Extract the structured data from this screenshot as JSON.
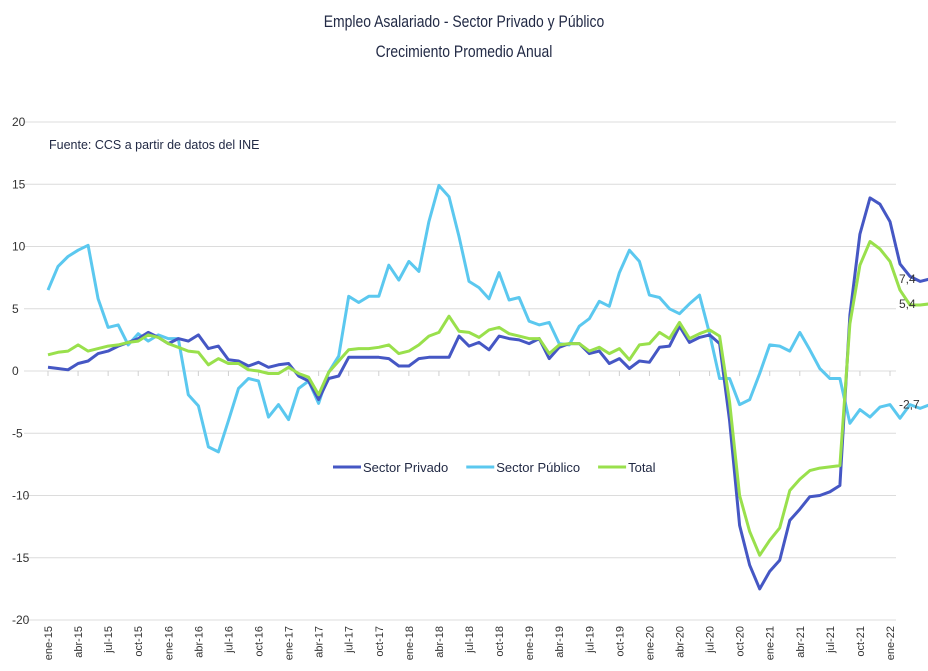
{
  "chart_data": {
    "type": "line",
    "title": "Empleo Asalariado - Sector Privado y Público",
    "subtitle": "Crecimiento Promedio Anual",
    "annotation": "Fuente: CCS a partir de datos del INE",
    "xlabel": "",
    "ylabel": "",
    "ylim": [
      -20,
      20
    ],
    "yticks": [
      20,
      15,
      10,
      5,
      0,
      -5,
      -10,
      -15,
      -20
    ],
    "grid": true,
    "legend_position": "center",
    "x_tick_labels": [
      "ene-15",
      "abr-15",
      "jul-15",
      "oct-15",
      "ene-16",
      "abr-16",
      "jul-16",
      "oct-16",
      "ene-17",
      "abr-17",
      "jul-17",
      "oct-17",
      "ene-18",
      "abr-18",
      "jul-18",
      "oct-18",
      "ene-19",
      "abr-19",
      "jul-19",
      "oct-19",
      "ene-20",
      "abr-20",
      "jul-20",
      "oct-20",
      "ene-21",
      "abr-21",
      "jul-21",
      "oct-21",
      "ene-22"
    ],
    "x_tick_step_months": 3,
    "series": [
      {
        "name": "Sector Privado",
        "color": "#4557c4",
        "end_label": "7,4",
        "values": [
          0.3,
          0.2,
          0.1,
          0.6,
          0.8,
          1.4,
          1.6,
          2.0,
          2.3,
          2.6,
          3.1,
          2.7,
          2.2,
          2.6,
          2.4,
          2.9,
          1.8,
          2.0,
          0.9,
          0.8,
          0.4,
          0.7,
          0.3,
          0.5,
          0.6,
          -0.4,
          -0.8,
          -2.3,
          -0.6,
          -0.4,
          1.1,
          1.1,
          1.1,
          1.1,
          1.0,
          0.4,
          0.4,
          1.0,
          1.1,
          1.1,
          1.1,
          2.8,
          2.0,
          2.3,
          1.7,
          2.8,
          2.6,
          2.5,
          2.2,
          2.6,
          1.0,
          1.9,
          2.2,
          2.2,
          1.4,
          1.6,
          0.6,
          1.0,
          0.2,
          0.8,
          0.7,
          1.9,
          2.0,
          3.6,
          2.3,
          2.7,
          2.9,
          2.2,
          -4.0,
          -12.4,
          -15.6,
          -17.5,
          -16.1,
          -15.2,
          -12.0,
          -11.1,
          -10.1,
          -10.0,
          -9.7,
          -9.2,
          4.5,
          11.0,
          13.9,
          13.4,
          12.0,
          8.6,
          7.6,
          7.2,
          7.4
        ]
      },
      {
        "name": "Sector Público",
        "color": "#5bc8ef",
        "end_label": "-2,7",
        "values": [
          6.5,
          8.4,
          9.2,
          9.7,
          10.1,
          5.8,
          3.5,
          3.7,
          2.1,
          3.0,
          2.4,
          2.9,
          2.6,
          2.6,
          -1.9,
          -2.8,
          -6.1,
          -6.5,
          -4.0,
          -1.4,
          -0.6,
          -0.8,
          -3.7,
          -2.7,
          -3.9,
          -1.4,
          -0.8,
          -2.6,
          -0.1,
          1.2,
          6.0,
          5.5,
          6.0,
          6.0,
          8.5,
          7.3,
          8.8,
          8.0,
          12.0,
          14.9,
          14.0,
          10.8,
          7.2,
          6.7,
          5.8,
          7.9,
          5.7,
          5.9,
          4.0,
          3.7,
          3.9,
          2.2,
          2.1,
          3.6,
          4.2,
          5.6,
          5.2,
          7.9,
          9.7,
          8.8,
          6.1,
          5.9,
          5.0,
          4.6,
          5.4,
          6.1,
          3.0,
          -0.6,
          -0.6,
          -2.7,
          -2.3,
          -0.2,
          2.1,
          2.0,
          1.6,
          3.1,
          1.7,
          0.2,
          -0.6,
          -0.6,
          -4.2,
          -3.1,
          -3.7,
          -2.9,
          -2.7,
          -3.8,
          -2.7,
          -3.0,
          -2.7
        ]
      },
      {
        "name": "Total",
        "color": "#99e04c",
        "end_label": "5,4",
        "values": [
          1.3,
          1.5,
          1.6,
          2.1,
          1.6,
          1.8,
          2.0,
          2.1,
          2.3,
          2.4,
          2.9,
          2.7,
          2.2,
          1.9,
          1.6,
          1.5,
          0.5,
          1.0,
          0.6,
          0.6,
          0.1,
          0.0,
          -0.2,
          -0.2,
          0.3,
          -0.2,
          -0.5,
          -1.9,
          -0.1,
          0.8,
          1.7,
          1.8,
          1.8,
          1.9,
          2.1,
          1.4,
          1.6,
          2.1,
          2.8,
          3.1,
          4.4,
          3.2,
          3.1,
          2.7,
          3.3,
          3.5,
          3.0,
          2.8,
          2.6,
          2.6,
          1.4,
          2.1,
          2.2,
          2.2,
          1.6,
          1.9,
          1.4,
          1.8,
          0.9,
          2.1,
          2.2,
          3.1,
          2.6,
          3.9,
          2.6,
          3.0,
          3.3,
          2.8,
          -2.5,
          -10.0,
          -12.9,
          -14.8,
          -13.6,
          -12.6,
          -9.6,
          -8.7,
          -8.0,
          -7.8,
          -7.7,
          -7.6,
          3.8,
          8.5,
          10.4,
          9.8,
          8.8,
          6.5,
          5.3,
          5.3,
          5.4
        ]
      }
    ]
  }
}
